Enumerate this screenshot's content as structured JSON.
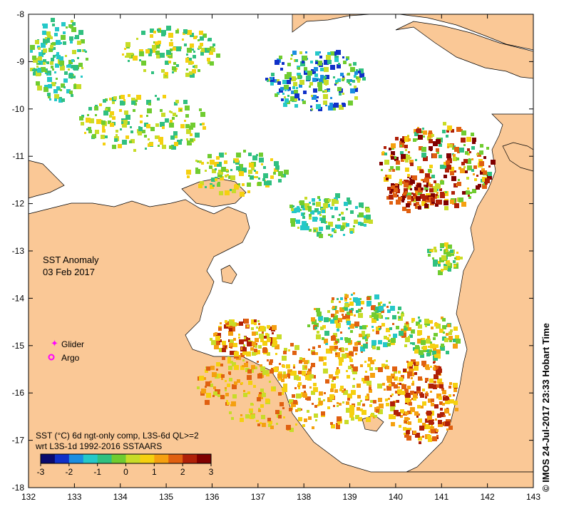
{
  "map": {
    "title": "SST Anomaly",
    "date": "03 Feb 2017",
    "caption_line1": "SST (°C) 6d ngt-only comp, L3S-6d QL>=2",
    "caption_line2": "wrt L3S-1d 1992-2016 SSTAARS",
    "credit": "©  IMOS 24-Jul-2017 23:33 Hobart Time",
    "x_ticks": [
      "132",
      "133",
      "134",
      "135",
      "136",
      "137",
      "138",
      "139",
      "140",
      "141",
      "142",
      "143"
    ],
    "y_ticks": [
      "-8",
      "-9",
      "-10",
      "-11",
      "-12",
      "-13",
      "-14",
      "-15",
      "-16",
      "-17",
      "-18"
    ],
    "x_range": [
      132,
      143
    ],
    "y_range": [
      -18,
      -8
    ],
    "legend": {
      "glider": "Glider",
      "argo": "Argo",
      "glider_color": "#ff00ff",
      "argo_color": "#ff00ff"
    },
    "colorbar": {
      "ticks": [
        "-3",
        "-2",
        "-1",
        "0",
        "1",
        "2",
        "3"
      ],
      "range": [
        -3,
        3
      ],
      "colors": [
        "#0a0a6e",
        "#1030c8",
        "#1b8ee0",
        "#25c8c8",
        "#30c080",
        "#70cc30",
        "#c8dc28",
        "#f5d010",
        "#f5a010",
        "#e06010",
        "#b02008",
        "#800000"
      ]
    },
    "land_color": "#fac896",
    "ocean_color": "#ffffff"
  }
}
